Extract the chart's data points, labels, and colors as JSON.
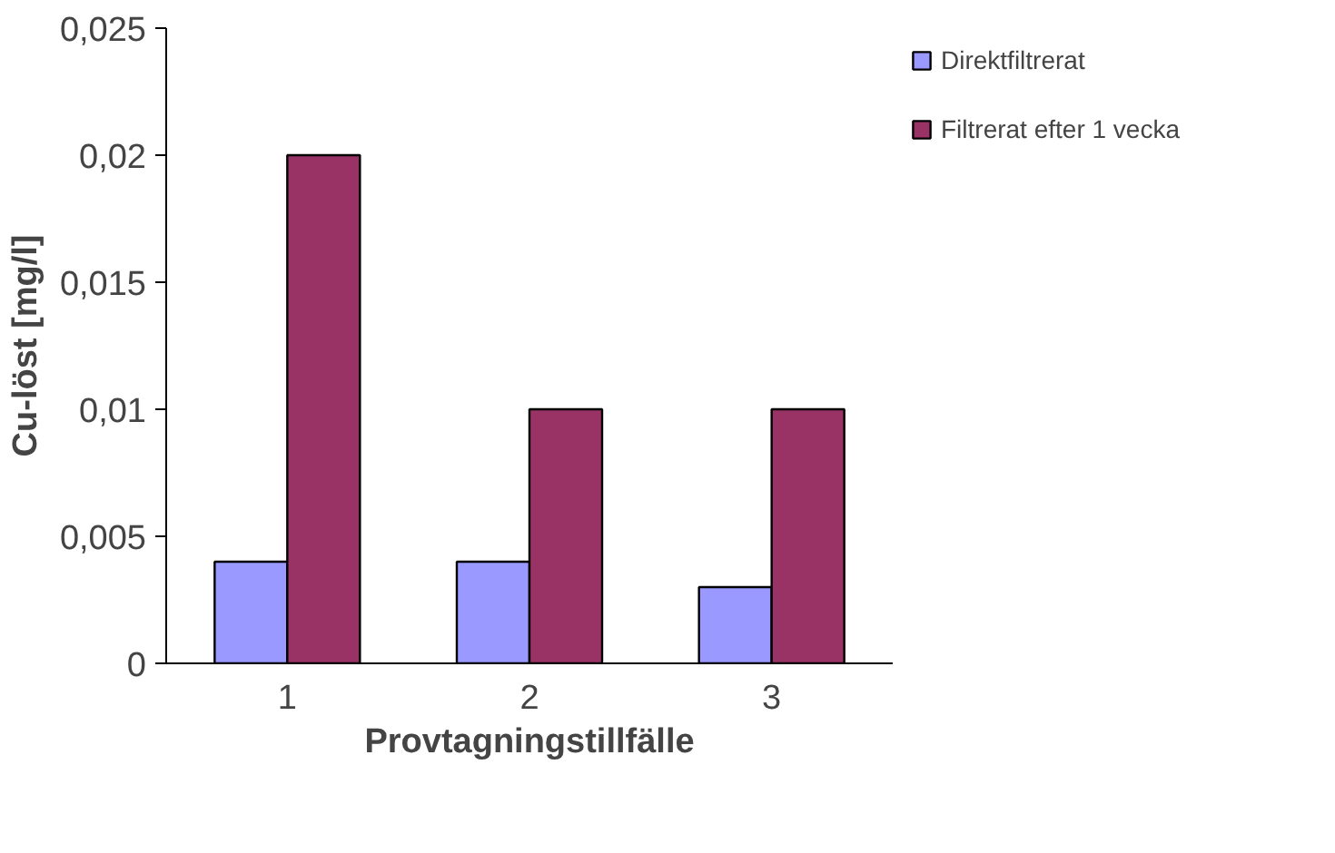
{
  "chart_data": {
    "type": "bar",
    "xlabel": "Provtagningstillfälle",
    "ylabel": "Cu-löst [mg/l]",
    "categories": [
      "1",
      "2",
      "3"
    ],
    "series": [
      {
        "name": "Direktfiltrerat",
        "color": "#9999ff",
        "values": [
          0.004,
          0.004,
          0.003
        ]
      },
      {
        "name": "Filtrerat efter 1 vecka",
        "color": "#993366",
        "values": [
          0.02,
          0.01,
          0.01
        ]
      }
    ],
    "ylim": [
      0,
      0.025
    ],
    "yticks": [
      {
        "value": 0,
        "label": "0"
      },
      {
        "value": 0.005,
        "label": "0,005"
      },
      {
        "value": 0.01,
        "label": "0,01"
      },
      {
        "value": 0.015,
        "label": "0,015"
      },
      {
        "value": 0.02,
        "label": "0,02"
      },
      {
        "value": 0.025,
        "label": "0,025"
      }
    ],
    "legend": "top right"
  }
}
